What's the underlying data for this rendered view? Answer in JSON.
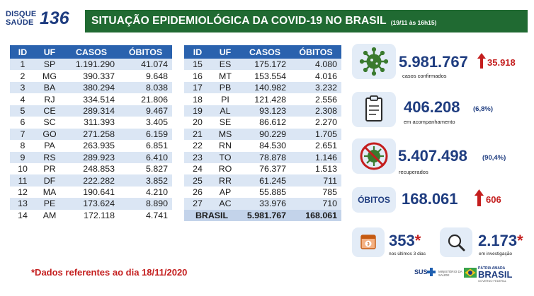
{
  "logo": {
    "line1": "DISQUE",
    "line2": "SAÚDE",
    "number": "136"
  },
  "header": {
    "title": "SITUAÇÃO EPIDEMIOLÓGICA DA COVID-19 NO BRASIL",
    "subtitle": "(19/11 às 16h15)"
  },
  "table": {
    "columns": [
      "ID",
      "UF",
      "CASOS",
      "ÓBITOS"
    ],
    "left_rows": [
      [
        "1",
        "SP",
        "1.191.290",
        "41.074"
      ],
      [
        "2",
        "MG",
        "390.337",
        "9.648"
      ],
      [
        "3",
        "BA",
        "380.294",
        "8.038"
      ],
      [
        "4",
        "RJ",
        "334.514",
        "21.806"
      ],
      [
        "5",
        "CE",
        "289.314",
        "9.467"
      ],
      [
        "6",
        "SC",
        "311.393",
        "3.405"
      ],
      [
        "7",
        "GO",
        "271.258",
        "6.159"
      ],
      [
        "8",
        "PA",
        "263.935",
        "6.851"
      ],
      [
        "9",
        "RS",
        "289.923",
        "6.410"
      ],
      [
        "10",
        "PR",
        "248.853",
        "5.827"
      ],
      [
        "11",
        "DF",
        "222.282",
        "3.852"
      ],
      [
        "12",
        "MA",
        "190.641",
        "4.210"
      ],
      [
        "13",
        "PE",
        "173.624",
        "8.890"
      ],
      [
        "14",
        "AM",
        "172.118",
        "4.741"
      ]
    ],
    "right_rows": [
      [
        "15",
        "ES",
        "175.172",
        "4.080"
      ],
      [
        "16",
        "MT",
        "153.554",
        "4.016"
      ],
      [
        "17",
        "PB",
        "140.982",
        "3.232"
      ],
      [
        "18",
        "PI",
        "121.428",
        "2.556"
      ],
      [
        "19",
        "AL",
        "93.123",
        "2.308"
      ],
      [
        "20",
        "SE",
        "86.612",
        "2.270"
      ],
      [
        "21",
        "MS",
        "90.229",
        "1.705"
      ],
      [
        "22",
        "RN",
        "84.530",
        "2.651"
      ],
      [
        "23",
        "TO",
        "78.878",
        "1.146"
      ],
      [
        "24",
        "RO",
        "76.377",
        "1.513"
      ],
      [
        "25",
        "RR",
        "61.245",
        "711"
      ],
      [
        "26",
        "AP",
        "55.885",
        "785"
      ],
      [
        "27",
        "AC",
        "33.976",
        "710"
      ]
    ],
    "total": {
      "label": "BRASIL",
      "cases": "5.981.767",
      "deaths": "168.061"
    }
  },
  "stats": {
    "confirmed": {
      "value": "5.981.767",
      "increase": "35.918",
      "label": "casos confirmados",
      "icon": "virus-icon"
    },
    "monitoring": {
      "value": "406.208",
      "pct": "(6,8%)",
      "label": "em acompanhamento",
      "icon": "clipboard-icon"
    },
    "recovered": {
      "value": "5.407.498",
      "pct": "(90,4%)",
      "label": "recuperados",
      "icon": "crossed-virus-icon"
    },
    "deaths": {
      "box_label": "ÓBITOS",
      "value": "168.061",
      "increase": "606"
    },
    "last3days": {
      "value": "353",
      "star": "*",
      "label": "nos últimos 3 dias",
      "icon": "calendar-icon"
    },
    "investigation": {
      "value": "2.173",
      "star": "*",
      "label": "em investigação",
      "icon": "magnifier-icon"
    }
  },
  "footnote": "*Dados referentes ao dia 18/11/2020",
  "footer": {
    "sus": "SUS",
    "ministerio": "MINISTÉRIO DA SAÚDE",
    "patria": "PÁTRIA AMADA",
    "brasil": "BRASIL",
    "gov": "GOVERNO FEDERAL"
  },
  "colors": {
    "primary_blue": "#1f3d80",
    "header_green": "#206a32",
    "table_header": "#2a62ae",
    "alert_red": "#c41e1e",
    "row_stripe": "#dbe6f4",
    "icon_green": "#3a7a2e"
  }
}
